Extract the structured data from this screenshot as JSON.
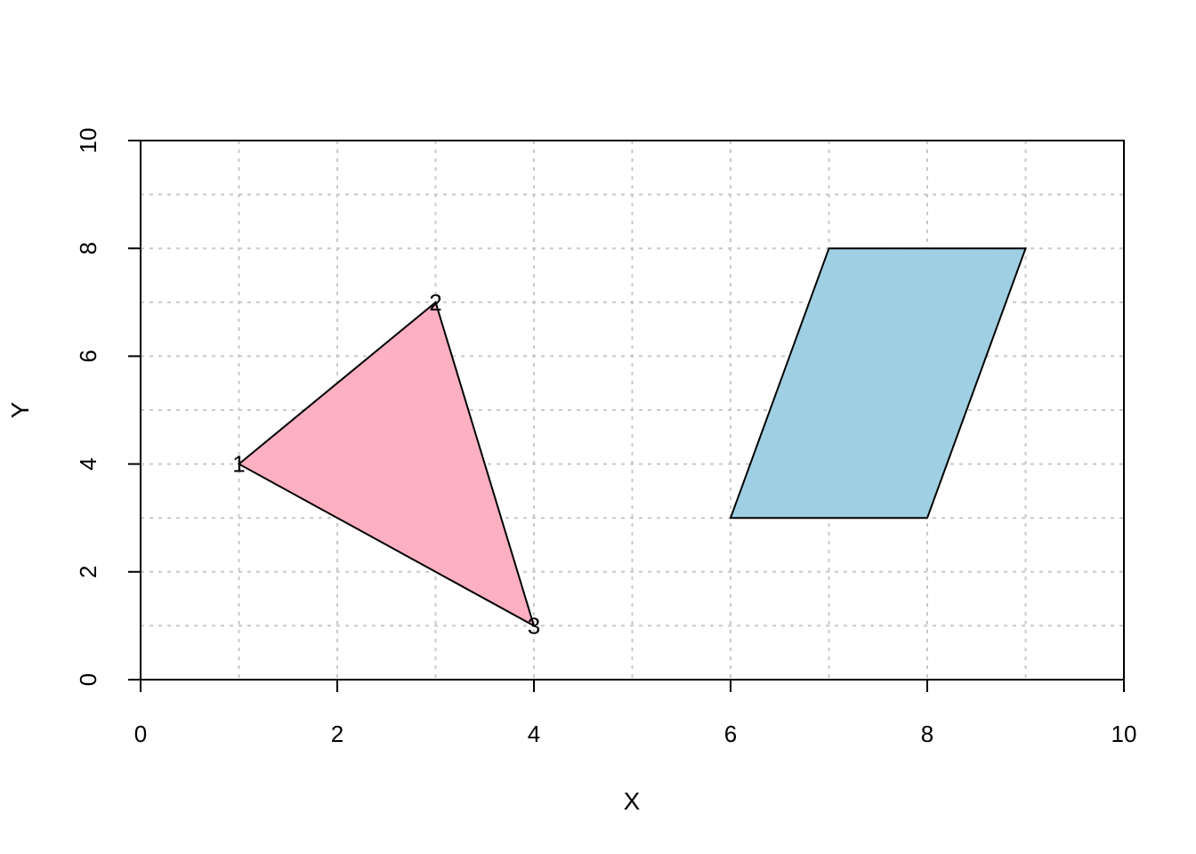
{
  "chart_data": {
    "type": "polygon",
    "title": "",
    "xlabel": "X",
    "ylabel": "Y",
    "xlim": [
      0,
      10
    ],
    "ylim": [
      0,
      10
    ],
    "x_ticks": [
      0,
      2,
      4,
      6,
      8,
      10
    ],
    "y_ticks": [
      0,
      2,
      4,
      6,
      8,
      10
    ],
    "grid": true,
    "grid_x": [
      0,
      1,
      2,
      3,
      4,
      5,
      6,
      7,
      8,
      9,
      10
    ],
    "grid_y": [
      0,
      1,
      2,
      3,
      4,
      5,
      6,
      7,
      8,
      9,
      10
    ],
    "grid_color": "#c8c8c8",
    "polygons": [
      {
        "fill": "#fdb0c2",
        "stroke": "#000000",
        "points": [
          [
            1,
            4
          ],
          [
            3,
            7
          ],
          [
            4,
            1
          ]
        ],
        "vertex_labels": [
          "1",
          "2",
          "3"
        ]
      },
      {
        "fill": "#9fcfe2",
        "stroke": "#000000",
        "points": [
          [
            6,
            3
          ],
          [
            7,
            8
          ],
          [
            9,
            8
          ],
          [
            8,
            3
          ]
        ]
      }
    ]
  }
}
